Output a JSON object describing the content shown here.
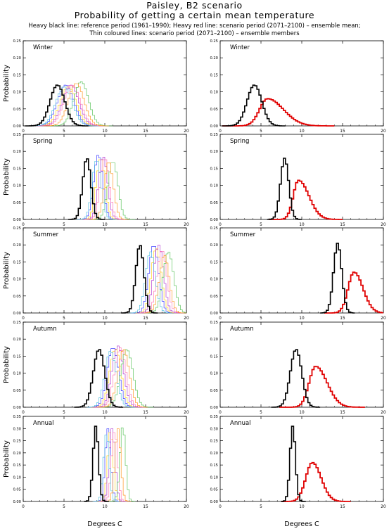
{
  "header": {
    "title": "Paisley, B2 scenario",
    "subtitle": "Probability of getting a certain mean temperature",
    "note_line1": "Heavy black line: reference period (1961–1990); Heavy red line: scenario period (2071–2100) – ensemble mean;",
    "note_line2": "Thin coloured lines: scenario period (2071–2100) – ensemble members"
  },
  "axis_labels": {
    "ylabel": "Probability",
    "xlabel": "Degrees C"
  },
  "colors": {
    "reference": "#000000",
    "ensemble_mean": "#e00000",
    "members": [
      "#2222ff",
      "#ffcc00",
      "#aa22cc",
      "#ff66aa",
      "#44bb44",
      "#44bbdd",
      "#ff8800",
      "#888888"
    ]
  },
  "chart_data": [
    {
      "type": "line",
      "panel": "ensemble-members",
      "season": "Winter",
      "title": "Winter",
      "ylim": [
        0,
        0.25
      ],
      "yticks": [
        "0.00",
        "0.05",
        "0.10",
        "0.15",
        "0.20",
        "0.25"
      ],
      "xlim": [
        0,
        20
      ],
      "xticks": [
        "0",
        "5",
        "10",
        "15",
        "20"
      ],
      "reference": {
        "mean": 4.2,
        "sd": 0.9,
        "peak": 0.12
      },
      "ensemble_mean": null,
      "members": [
        {
          "mean": 5.2,
          "sd": 1.0,
          "peak": 0.12
        },
        {
          "mean": 5.5,
          "sd": 1.0,
          "peak": 0.115
        },
        {
          "mean": 5.8,
          "sd": 1.0,
          "peak": 0.12
        },
        {
          "mean": 6.0,
          "sd": 1.0,
          "peak": 0.12
        },
        {
          "mean": 7.1,
          "sd": 0.9,
          "peak": 0.13
        },
        {
          "mean": 5.0,
          "sd": 1.0,
          "peak": 0.115
        },
        {
          "mean": 6.5,
          "sd": 0.95,
          "peak": 0.125
        }
      ]
    },
    {
      "type": "line",
      "panel": "ensemble-mean",
      "season": "Winter",
      "title": "Winter",
      "ylim": [
        0,
        0.25
      ],
      "yticks": [
        "0.00",
        "0.05",
        "0.10",
        "0.15",
        "0.20",
        "0.25"
      ],
      "xlim": [
        0,
        20
      ],
      "xticks": [
        "0",
        "5",
        "10",
        "15",
        "20"
      ],
      "reference": {
        "mean": 4.2,
        "sd": 0.9,
        "peak": 0.12
      },
      "ensemble_mean": {
        "mean": 5.8,
        "sd": 1.3,
        "peak": 0.08,
        "skew": 0.5
      },
      "members": []
    },
    {
      "type": "line",
      "panel": "ensemble-members",
      "season": "Spring",
      "title": "Spring",
      "ylim": [
        0,
        0.25
      ],
      "yticks": [
        "0.00",
        "0.05",
        "0.10",
        "0.15",
        "0.20",
        "0.25"
      ],
      "xlim": [
        0,
        20
      ],
      "xticks": [
        "0",
        "5",
        "10",
        "15",
        "20"
      ],
      "reference": {
        "mean": 7.8,
        "sd": 0.5,
        "peak": 0.18
      },
      "ensemble_mean": null,
      "members": [
        {
          "mean": 9.2,
          "sd": 0.55,
          "peak": 0.19
        },
        {
          "mean": 9.5,
          "sd": 0.55,
          "peak": 0.18
        },
        {
          "mean": 9.8,
          "sd": 0.55,
          "peak": 0.185
        },
        {
          "mean": 10.0,
          "sd": 0.55,
          "peak": 0.18
        },
        {
          "mean": 11.0,
          "sd": 0.6,
          "peak": 0.17
        },
        {
          "mean": 9.0,
          "sd": 0.55,
          "peak": 0.175
        },
        {
          "mean": 10.5,
          "sd": 0.55,
          "peak": 0.17
        }
      ]
    },
    {
      "type": "line",
      "panel": "ensemble-mean",
      "season": "Spring",
      "title": "Spring",
      "ylim": [
        0,
        0.25
      ],
      "yticks": [
        "0.00",
        "0.05",
        "0.10",
        "0.15",
        "0.20",
        "0.25"
      ],
      "xlim": [
        0,
        20
      ],
      "xticks": [
        "0",
        "5",
        "10",
        "15",
        "20"
      ],
      "reference": {
        "mean": 7.9,
        "sd": 0.5,
        "peak": 0.18
      },
      "ensemble_mean": {
        "mean": 9.6,
        "sd": 0.85,
        "peak": 0.115,
        "skew": 0.5
      },
      "members": []
    },
    {
      "type": "line",
      "panel": "ensemble-members",
      "season": "Summer",
      "title": "Summer",
      "ylim": [
        0,
        0.25
      ],
      "yticks": [
        "0.00",
        "0.05",
        "0.10",
        "0.15",
        "0.20",
        "0.25"
      ],
      "xlim": [
        0,
        20
      ],
      "xticks": [
        "0",
        "5",
        "10",
        "15",
        "20"
      ],
      "reference": {
        "mean": 14.3,
        "sd": 0.5,
        "peak": 0.2
      },
      "ensemble_mean": null,
      "members": [
        {
          "mean": 16.0,
          "sd": 0.6,
          "peak": 0.2
        },
        {
          "mean": 16.3,
          "sd": 0.6,
          "peak": 0.19
        },
        {
          "mean": 16.6,
          "sd": 0.6,
          "peak": 0.2
        },
        {
          "mean": 17.0,
          "sd": 0.6,
          "peak": 0.185
        },
        {
          "mean": 17.8,
          "sd": 0.65,
          "peak": 0.18
        },
        {
          "mean": 15.6,
          "sd": 0.6,
          "peak": 0.18
        },
        {
          "mean": 17.3,
          "sd": 0.6,
          "peak": 0.17
        }
      ]
    },
    {
      "type": "line",
      "panel": "ensemble-mean",
      "season": "Summer",
      "title": "Summer",
      "ylim": [
        0,
        0.25
      ],
      "yticks": [
        "0.00",
        "0.05",
        "0.10",
        "0.15",
        "0.20",
        "0.25"
      ],
      "xlim": [
        0,
        20
      ],
      "xticks": [
        "0",
        "5",
        "10",
        "15",
        "20"
      ],
      "reference": {
        "mean": 14.4,
        "sd": 0.5,
        "peak": 0.205
      },
      "ensemble_mean": {
        "mean": 16.4,
        "sd": 0.85,
        "peak": 0.12,
        "skew": 0.3
      },
      "members": []
    },
    {
      "type": "line",
      "panel": "ensemble-members",
      "season": "Autumn",
      "title": "Autumn",
      "ylim": [
        0,
        0.25
      ],
      "yticks": [
        "0.00",
        "0.05",
        "0.10",
        "0.15",
        "0.20",
        "0.25"
      ],
      "xlim": [
        0,
        20
      ],
      "xticks": [
        "0",
        "5",
        "10",
        "15",
        "20"
      ],
      "reference": {
        "mean": 9.3,
        "sd": 0.7,
        "peak": 0.17
      },
      "ensemble_mean": null,
      "members": [
        {
          "mean": 11.0,
          "sd": 0.7,
          "peak": 0.175
        },
        {
          "mean": 11.3,
          "sd": 0.7,
          "peak": 0.17
        },
        {
          "mean": 11.6,
          "sd": 0.7,
          "peak": 0.18
        },
        {
          "mean": 11.9,
          "sd": 0.7,
          "peak": 0.175
        },
        {
          "mean": 12.7,
          "sd": 0.75,
          "peak": 0.17
        },
        {
          "mean": 10.7,
          "sd": 0.7,
          "peak": 0.165
        },
        {
          "mean": 12.3,
          "sd": 0.7,
          "peak": 0.17
        }
      ]
    },
    {
      "type": "line",
      "panel": "ensemble-mean",
      "season": "Autumn",
      "title": "Autumn",
      "ylim": [
        0,
        0.25
      ],
      "yticks": [
        "0.00",
        "0.05",
        "0.10",
        "0.15",
        "0.20",
        "0.25"
      ],
      "xlim": [
        0,
        20
      ],
      "xticks": [
        "0",
        "5",
        "10",
        "15",
        "20"
      ],
      "reference": {
        "mean": 9.3,
        "sd": 0.7,
        "peak": 0.17
      },
      "ensemble_mean": {
        "mean": 11.7,
        "sd": 1.0,
        "peak": 0.12,
        "skew": 0.4
      },
      "members": []
    },
    {
      "type": "line",
      "panel": "ensemble-members",
      "season": "Annual",
      "title": "Annual",
      "ylim": [
        0,
        0.35
      ],
      "yticks": [
        "0.00",
        "0.05",
        "0.10",
        "0.15",
        "0.20",
        "0.25",
        "0.30",
        "0.35"
      ],
      "xlim": [
        0,
        20
      ],
      "xticks": [
        "0",
        "5",
        "10",
        "15",
        "20"
      ],
      "reference": {
        "mean": 8.9,
        "sd": 0.33,
        "peak": 0.31
      },
      "ensemble_mean": null,
      "members": [
        {
          "mean": 10.4,
          "sd": 0.35,
          "peak": 0.3
        },
        {
          "mean": 10.7,
          "sd": 0.35,
          "peak": 0.29
        },
        {
          "mean": 10.9,
          "sd": 0.35,
          "peak": 0.3
        },
        {
          "mean": 11.2,
          "sd": 0.35,
          "peak": 0.29
        },
        {
          "mean": 12.2,
          "sd": 0.35,
          "peak": 0.31
        },
        {
          "mean": 10.2,
          "sd": 0.35,
          "peak": 0.28
        },
        {
          "mean": 11.6,
          "sd": 0.35,
          "peak": 0.3
        }
      ]
    },
    {
      "type": "line",
      "panel": "ensemble-mean",
      "season": "Annual",
      "title": "Annual",
      "ylim": [
        0,
        0.35
      ],
      "yticks": [
        "0.00",
        "0.05",
        "0.10",
        "0.15",
        "0.20",
        "0.25",
        "0.30",
        "0.35"
      ],
      "xlim": [
        0,
        20
      ],
      "xticks": [
        "0",
        "5",
        "10",
        "15",
        "20"
      ],
      "reference": {
        "mean": 8.9,
        "sd": 0.33,
        "peak": 0.31
      },
      "ensemble_mean": {
        "mean": 11.3,
        "sd": 0.9,
        "peak": 0.16,
        "skew": 0.2
      },
      "members": []
    }
  ]
}
